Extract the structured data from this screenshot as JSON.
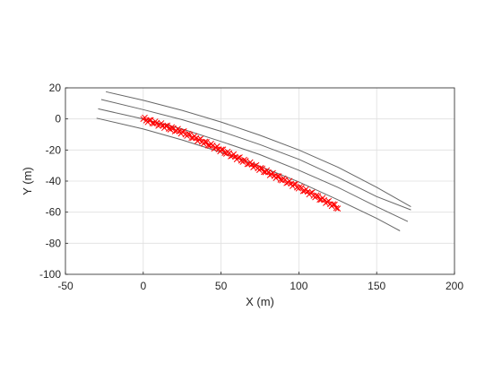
{
  "chart_data": {
    "type": "scatter",
    "title": "",
    "xlabel": "X (m)",
    "ylabel": "Y (m)",
    "xlim": [
      -50,
      200
    ],
    "ylim": [
      -100,
      20
    ],
    "xticks": [
      -50,
      0,
      50,
      100,
      150,
      200
    ],
    "yticks": [
      -100,
      -80,
      -60,
      -40,
      -20,
      0,
      20
    ],
    "xtick_labels": [
      "-50",
      "0",
      "50",
      "100",
      "150",
      "200"
    ],
    "ytick_labels": [
      "-100",
      "-80",
      "-60",
      "-40",
      "-20",
      "0",
      "20"
    ],
    "grid": true,
    "legend": "none",
    "colors": {
      "lanes": "#666666",
      "detections": "#ff0000",
      "grid": "#dfdfdf",
      "axes": "#262626"
    },
    "lanes": [
      {
        "x": [
          -24,
          0,
          25,
          50,
          75,
          100,
          125,
          150,
          172
        ],
        "y": [
          17.5,
          12.0,
          5.5,
          -2.0,
          -10.5,
          -20.0,
          -31.0,
          -44.0,
          -56.5
        ]
      },
      {
        "x": [
          -27,
          0,
          25,
          50,
          75,
          100,
          125,
          150,
          172
        ],
        "y": [
          12.5,
          6.0,
          -0.5,
          -8.0,
          -16.5,
          -26.0,
          -37.5,
          -50.0,
          -58.5
        ]
      },
      {
        "x": [
          -29,
          0,
          25,
          50,
          75,
          100,
          125,
          150,
          170
        ],
        "y": [
          6.5,
          0.0,
          -6.5,
          -14.5,
          -23.0,
          -33.0,
          -44.0,
          -56.5,
          -66.0
        ]
      },
      {
        "x": [
          -30,
          0,
          25,
          50,
          75,
          100,
          125,
          150,
          165
        ],
        "y": [
          0.5,
          -6.5,
          -13.5,
          -21.5,
          -30.5,
          -40.5,
          -52.0,
          -64.0,
          -72.0
        ]
      }
    ],
    "detections": {
      "marker": "x",
      "x_start": 0,
      "x_end": 125,
      "count": 130,
      "curve": {
        "x": [
          0,
          25,
          50,
          75,
          100,
          125
        ],
        "y": [
          0.0,
          -8.5,
          -20.0,
          -32.0,
          -44.0,
          -57.0
        ]
      },
      "spread": 1.2
    }
  }
}
